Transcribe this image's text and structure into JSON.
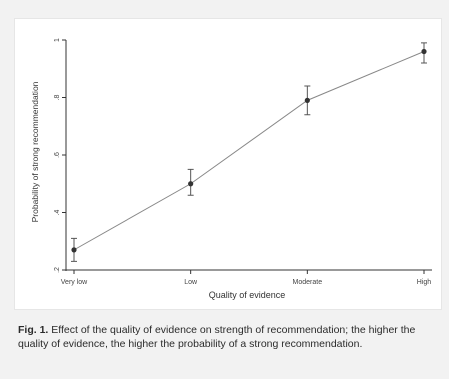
{
  "chart_data": {
    "type": "line",
    "categories": [
      "Very low",
      "Low",
      "Moderate",
      "High"
    ],
    "y_ticks": [
      ".2",
      ".4",
      ".6",
      ".8",
      "1"
    ],
    "ylim": [
      0.2,
      1.0
    ],
    "xlabel": "Quality of evidence",
    "ylabel": "Probability of strong recommendation",
    "grid": false,
    "series": [
      {
        "values": [
          0.27,
          0.5,
          0.79,
          0.96
        ],
        "ci_low": [
          0.23,
          0.46,
          0.74,
          0.92
        ],
        "ci_high": [
          0.31,
          0.55,
          0.84,
          0.99
        ]
      }
    ],
    "line_color": "#888888",
    "marker_color": "#333333"
  },
  "caption": {
    "label": "Fig. 1.",
    "text": "Effect of the quality of evidence on strength of recommendation; the higher the quality of evidence, the higher the probability of a strong recommendation."
  }
}
